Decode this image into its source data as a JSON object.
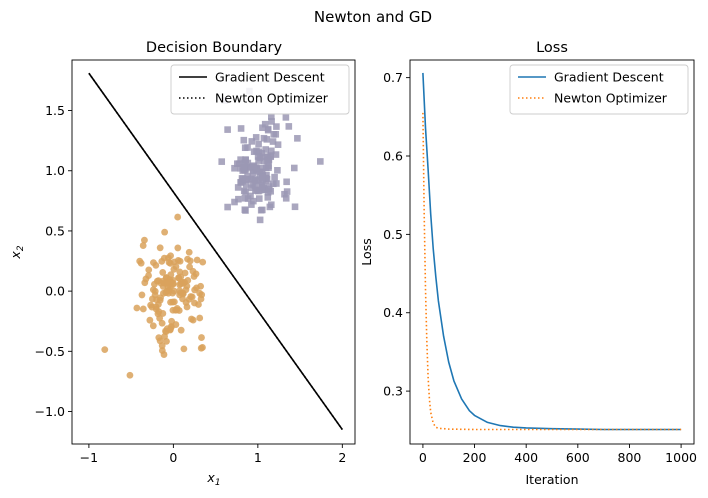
{
  "figure": {
    "suptitle": "Newton and GD"
  },
  "chart_data": [
    {
      "type": "scatter",
      "title": "Decision Boundary",
      "xlabel": "x",
      "xlabel_sub": "1",
      "ylabel": "x",
      "ylabel_sub": "2",
      "xlim": [
        -1.2,
        2.15
      ],
      "ylim": [
        -1.27,
        1.92
      ],
      "xticks": [
        -1,
        0,
        1,
        2
      ],
      "yticks": [
        -1.0,
        -0.5,
        0.0,
        0.5,
        1.0,
        1.5
      ],
      "ytick_labels": [
        "−1.0",
        "−0.5",
        "0.0",
        "0.5",
        "1.0",
        "1.5"
      ],
      "xtick_labels": [
        "−1",
        "0",
        "1",
        "2"
      ],
      "grid": false,
      "legend": {
        "placement": "top-right",
        "entries": [
          {
            "label": "Gradient Descent",
            "style": "solid",
            "color": "#000000"
          },
          {
            "label": "Newton Optimizer",
            "style": "dotted",
            "color": "#000000"
          }
        ]
      },
      "lines": [
        {
          "name": "Gradient Descent",
          "x": [
            -1,
            2
          ],
          "y": [
            1.81,
            -1.15
          ]
        },
        {
          "name": "Newton Optimizer",
          "x": [
            -1,
            2
          ],
          "y": [
            1.81,
            -1.15
          ]
        }
      ],
      "clusters": [
        {
          "marker": "square",
          "color": "#9b98b4",
          "center": [
            1.0,
            1.0
          ],
          "spread": [
            0.19,
            0.2
          ],
          "n": 150
        },
        {
          "marker": "circle",
          "color": "#d9a25c",
          "center": [
            0.0,
            0.0
          ],
          "spread": [
            0.19,
            0.2
          ],
          "n": 150
        }
      ]
    },
    {
      "type": "line",
      "title": "Loss",
      "xlabel": "Iteration",
      "ylabel": "Loss",
      "xlim": [
        -50,
        1050
      ],
      "ylim": [
        0.2325,
        0.7225
      ],
      "xticks": [
        0,
        200,
        400,
        600,
        800,
        1000
      ],
      "xtick_labels": [
        "0",
        "200",
        "400",
        "600",
        "800",
        "1000"
      ],
      "yticks": [
        0.3,
        0.4,
        0.5,
        0.6,
        0.7
      ],
      "ytick_labels": [
        "0.3",
        "0.4",
        "0.5",
        "0.6",
        "0.7"
      ],
      "grid": false,
      "legend": {
        "placement": "top-right",
        "entries": [
          {
            "label": "Gradient Descent",
            "style": "solid",
            "color": "#1f77b4"
          },
          {
            "label": "Newton Optimizer",
            "style": "dotted",
            "color": "#ff7f0e"
          }
        ]
      },
      "series": [
        {
          "name": "Gradient Descent",
          "color": "#1f77b4",
          "style": "solid",
          "x": [
            0,
            10,
            20,
            30,
            40,
            50,
            60,
            80,
            100,
            120,
            150,
            180,
            200,
            250,
            300,
            350,
            400,
            450,
            500,
            600,
            700,
            800,
            900,
            1000
          ],
          "y": [
            0.706,
            0.636,
            0.583,
            0.526,
            0.482,
            0.446,
            0.415,
            0.37,
            0.337,
            0.313,
            0.29,
            0.275,
            0.269,
            0.26,
            0.256,
            0.254,
            0.253,
            0.2525,
            0.252,
            0.2515,
            0.251,
            0.251,
            0.251,
            0.251
          ]
        },
        {
          "name": "Newton Optimizer",
          "color": "#ff7f0e",
          "style": "dotted",
          "x": [
            0,
            5,
            10,
            15,
            20,
            25,
            30,
            40,
            50,
            60,
            80,
            100,
            200,
            400,
            600,
            800,
            1000
          ],
          "y": [
            0.655,
            0.525,
            0.43,
            0.365,
            0.318,
            0.29,
            0.273,
            0.259,
            0.254,
            0.2525,
            0.252,
            0.2515,
            0.251,
            0.251,
            0.251,
            0.251,
            0.251
          ]
        }
      ]
    }
  ]
}
